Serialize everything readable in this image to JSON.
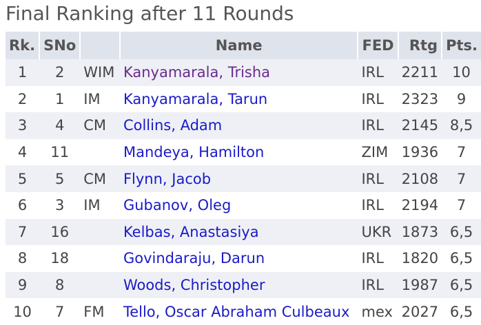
{
  "header": {
    "title": "Final Ranking after 11 Rounds"
  },
  "table": {
    "columns": [
      "Rk.",
      "SNo",
      "",
      "Name",
      "FED",
      "Rtg",
      "Pts."
    ],
    "rows": [
      [
        "1",
        "2",
        "WIM",
        "Kanyamarala, Trisha",
        "IRL",
        "2211",
        "10"
      ],
      [
        "2",
        "1",
        "IM",
        "Kanyamarala, Tarun",
        "IRL",
        "2323",
        "9"
      ],
      [
        "3",
        "4",
        "CM",
        "Collins, Adam",
        "IRL",
        "2145",
        "8,5"
      ],
      [
        "4",
        "11",
        "",
        "Mandeya, Hamilton",
        "ZIM",
        "1936",
        "7"
      ],
      [
        "5",
        "5",
        "CM",
        "Flynn, Jacob",
        "IRL",
        "2108",
        "7"
      ],
      [
        "6",
        "3",
        "IM",
        "Gubanov, Oleg",
        "IRL",
        "2194",
        "7"
      ],
      [
        "7",
        "16",
        "",
        "Kelbas, Anastasiya",
        "UKR",
        "1873",
        "6,5"
      ],
      [
        "8",
        "18",
        "",
        "Govindaraju, Darun",
        "IRL",
        "1820",
        "6,5"
      ],
      [
        "9",
        "8",
        "",
        "Woods, Christopher",
        "IRL",
        "1987",
        "6,5"
      ],
      [
        "10",
        "7",
        "FM",
        "Tello, Oscar Abraham Culbeaux",
        "mex",
        "2027",
        "6,5"
      ]
    ]
  }
}
